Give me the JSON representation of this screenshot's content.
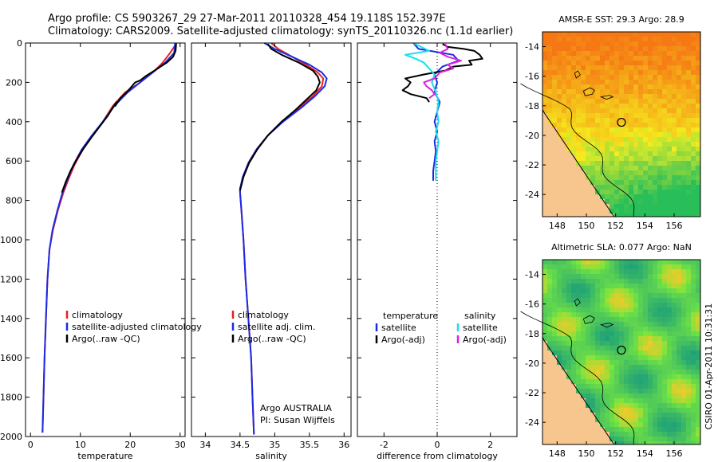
{
  "header": {
    "line1": "Argo profile: CS 5903267_29 27-Mar-2011 20110328_454 19.118S 152.397E",
    "line2": "Climatology: CARS2009. Satellite-adjusted climatology: synTS_20110326.nc (1.1d earlier)"
  },
  "footer_stamp": "CSIRO 01-Apr-2011 10:31:31",
  "colors": {
    "climatology": "#e8201a",
    "satellite": "#1a2be8",
    "argo": "#000000",
    "sal_satellite": "#19e0e8",
    "sal_argo": "#e020e0",
    "land": "#f7c58e"
  },
  "chart_data": [
    {
      "type": "line",
      "id": "temperature",
      "xlabel": "temperature",
      "ylabel": "",
      "xlim": [
        -1,
        31
      ],
      "ylim": [
        2000,
        0
      ],
      "xticks": [
        0,
        10,
        20,
        30
      ],
      "yticks": [
        0,
        200,
        400,
        600,
        800,
        1000,
        1200,
        1400,
        1600,
        1800,
        2000
      ],
      "legend": {
        "placement": "lower-right",
        "entries": [
          "climatology",
          "satellite-adjusted climatology",
          "Argo(..raw -QC)"
        ]
      },
      "series": [
        {
          "name": "climatology",
          "color": "climatology",
          "points": [
            [
              29.3,
              0
            ],
            [
              28,
              50
            ],
            [
              26.5,
              100
            ],
            [
              24.5,
              150
            ],
            [
              22,
              200
            ],
            [
              19,
              250
            ],
            [
              16.5,
              320
            ],
            [
              14.5,
              400
            ],
            [
              12.5,
              470
            ],
            [
              10.5,
              540
            ],
            [
              8.8,
              620
            ],
            [
              7.5,
              700
            ],
            [
              6.6,
              760
            ],
            [
              5.5,
              850
            ],
            [
              4.5,
              950
            ],
            [
              3.8,
              1050
            ],
            [
              3.4,
              1200
            ],
            [
              3.1,
              1400
            ],
            [
              2.8,
              1600
            ],
            [
              2.6,
              1800
            ],
            [
              2.4,
              1980
            ]
          ]
        },
        {
          "name": "satellite-adjusted climatology",
          "color": "satellite",
          "points": [
            [
              29.0,
              0
            ],
            [
              28.8,
              50
            ],
            [
              27,
              100
            ],
            [
              24.5,
              150
            ],
            [
              22,
              200
            ],
            [
              19.5,
              250
            ],
            [
              16.8,
              320
            ],
            [
              14.5,
              400
            ],
            [
              12.3,
              470
            ],
            [
              10.3,
              540
            ],
            [
              8.6,
              620
            ],
            [
              7.3,
              700
            ],
            [
              6.4,
              760
            ],
            [
              5.4,
              850
            ],
            [
              4.4,
              950
            ],
            [
              3.8,
              1050
            ],
            [
              3.4,
              1200
            ],
            [
              3.1,
              1400
            ],
            [
              2.8,
              1600
            ],
            [
              2.6,
              1800
            ],
            [
              2.4,
              1980
            ]
          ]
        },
        {
          "name": "Argo(..raw -QC)",
          "color": "argo",
          "points": [
            [
              29.2,
              5
            ],
            [
              29.1,
              40
            ],
            [
              28.6,
              70
            ],
            [
              27.3,
              100
            ],
            [
              25.5,
              130
            ],
            [
              23,
              170
            ],
            [
              22,
              190
            ],
            [
              21,
              200
            ],
            [
              19.3,
              250
            ],
            [
              18,
              280
            ],
            [
              17,
              320
            ],
            [
              17.2,
              300
            ],
            [
              15.5,
              370
            ],
            [
              14,
              420
            ],
            [
              12.5,
              470
            ],
            [
              10.8,
              530
            ],
            [
              9.3,
              590
            ],
            [
              8,
              650
            ],
            [
              7,
              710
            ],
            [
              6.3,
              760
            ]
          ]
        }
      ]
    },
    {
      "type": "line",
      "id": "salinity",
      "xlabel": "salinity",
      "ylabel": "",
      "xlim": [
        33.8,
        36.1
      ],
      "ylim": [
        2000,
        0
      ],
      "xticks": [
        34,
        34.5,
        35,
        35.5,
        36
      ],
      "yticks": [
        0,
        200,
        400,
        600,
        800,
        1000,
        1200,
        1400,
        1600,
        1800,
        2000
      ],
      "legend": {
        "placement": "lower-right",
        "entries": [
          "climatology",
          "satellite adj. clim.",
          "Argo(..raw -QC)"
        ]
      },
      "annotation": [
        "Argo AUSTRALIA",
        "PI: Susan Wijffels"
      ],
      "series": [
        {
          "name": "climatology",
          "color": "climatology",
          "points": [
            [
              34.95,
              0
            ],
            [
              35.05,
              30
            ],
            [
              35.25,
              70
            ],
            [
              35.45,
              110
            ],
            [
              35.62,
              150
            ],
            [
              35.7,
              180
            ],
            [
              35.68,
              220
            ],
            [
              35.55,
              270
            ],
            [
              35.35,
              330
            ],
            [
              35.1,
              400
            ],
            [
              34.9,
              470
            ],
            [
              34.74,
              540
            ],
            [
              34.62,
              610
            ],
            [
              34.55,
              680
            ],
            [
              34.5,
              740
            ],
            [
              34.5,
              760
            ],
            [
              34.52,
              850
            ],
            [
              34.55,
              1000
            ],
            [
              34.58,
              1200
            ],
            [
              34.62,
              1400
            ],
            [
              34.66,
              1600
            ],
            [
              34.68,
              1800
            ],
            [
              34.7,
              1990
            ]
          ]
        },
        {
          "name": "satellite adj. clim.",
          "color": "satellite",
          "points": [
            [
              34.85,
              0
            ],
            [
              35.0,
              30
            ],
            [
              35.25,
              70
            ],
            [
              35.5,
              110
            ],
            [
              35.68,
              150
            ],
            [
              35.75,
              180
            ],
            [
              35.72,
              220
            ],
            [
              35.58,
              270
            ],
            [
              35.38,
              330
            ],
            [
              35.12,
              400
            ],
            [
              34.9,
              470
            ],
            [
              34.74,
              540
            ],
            [
              34.62,
              610
            ],
            [
              34.54,
              680
            ],
            [
              34.5,
              740
            ],
            [
              34.5,
              760
            ],
            [
              34.52,
              850
            ],
            [
              34.55,
              1000
            ],
            [
              34.58,
              1200
            ],
            [
              34.62,
              1400
            ],
            [
              34.66,
              1600
            ],
            [
              34.68,
              1800
            ],
            [
              34.7,
              1990
            ]
          ]
        },
        {
          "name": "Argo(..raw -QC)",
          "color": "argo",
          "points": [
            [
              34.9,
              5
            ],
            [
              34.95,
              30
            ],
            [
              35.1,
              60
            ],
            [
              35.35,
              100
            ],
            [
              35.55,
              140
            ],
            [
              35.62,
              170
            ],
            [
              35.65,
              200
            ],
            [
              35.6,
              240
            ],
            [
              35.45,
              290
            ],
            [
              35.3,
              340
            ],
            [
              35.1,
              400
            ],
            [
              34.9,
              470
            ],
            [
              34.75,
              540
            ],
            [
              34.63,
              610
            ],
            [
              34.55,
              680
            ],
            [
              34.5,
              750
            ]
          ]
        }
      ]
    },
    {
      "type": "line",
      "id": "difference",
      "xlabel": "difference from climatology",
      "ylabel": "",
      "xlim": [
        -3,
        3
      ],
      "ylim": [
        2000,
        0
      ],
      "xticks": [
        -2,
        0,
        2
      ],
      "yticks": [
        0,
        200,
        400,
        600,
        800,
        1000,
        1200,
        1400,
        1600,
        1800,
        2000
      ],
      "zero_line": 0,
      "legend": {
        "placement": "lower-center",
        "temperature_title": "temperature",
        "salinity_title": "salinity",
        "temperature_entries": [
          "satellite",
          "Argo(-adj)"
        ],
        "salinity_entries": [
          "satellite",
          "Argo(-adj)"
        ]
      },
      "series": [
        {
          "name": "temperature satellite",
          "color": "satellite",
          "points": [
            [
              -0.9,
              0
            ],
            [
              -0.7,
              30
            ],
            [
              0.6,
              60
            ],
            [
              0.8,
              90
            ],
            [
              0.2,
              120
            ],
            [
              -0.1,
              160
            ],
            [
              0,
              200
            ],
            [
              -0.1,
              250
            ],
            [
              0.1,
              300
            ],
            [
              0,
              350
            ],
            [
              -0.1,
              400
            ],
            [
              0,
              450
            ],
            [
              -0.1,
              500
            ],
            [
              -0.05,
              550
            ],
            [
              -0.1,
              600
            ],
            [
              -0.15,
              650
            ],
            [
              -0.15,
              700
            ]
          ]
        },
        {
          "name": "temperature Argo(-adj)",
          "color": "argo",
          "points": [
            [
              0.2,
              5
            ],
            [
              0.4,
              20
            ],
            [
              1.0,
              30
            ],
            [
              1.4,
              40
            ],
            [
              1.6,
              60
            ],
            [
              1.7,
              80
            ],
            [
              1.2,
              90
            ],
            [
              1.3,
              110
            ],
            [
              0.6,
              120
            ],
            [
              0.3,
              140
            ],
            [
              -0.5,
              160
            ],
            [
              -1.2,
              180
            ],
            [
              -1.0,
              200
            ],
            [
              -1.1,
              220
            ],
            [
              -1.3,
              240
            ],
            [
              -1.0,
              260
            ],
            [
              -0.4,
              280
            ],
            [
              -0.3,
              300
            ]
          ]
        },
        {
          "name": "salinity satellite",
          "color": "sal_satellite",
          "points": [
            [
              -0.9,
              0
            ],
            [
              -0.6,
              20
            ],
            [
              -0.3,
              40
            ],
            [
              -1.2,
              60
            ],
            [
              -0.8,
              80
            ],
            [
              -0.5,
              100
            ],
            [
              -0.3,
              130
            ],
            [
              -0.1,
              160
            ],
            [
              -0.2,
              200
            ],
            [
              -0.05,
              250
            ],
            [
              0.05,
              300
            ],
            [
              0,
              350
            ],
            [
              0.05,
              400
            ],
            [
              -0.05,
              450
            ],
            [
              0.05,
              500
            ],
            [
              0,
              550
            ],
            [
              -0.05,
              600
            ],
            [
              -0.05,
              650
            ],
            [
              -0.05,
              700
            ]
          ]
        },
        {
          "name": "salinity Argo(-adj)",
          "color": "sal_argo",
          "points": [
            [
              0.3,
              5
            ],
            [
              0.4,
              30
            ],
            [
              0.1,
              50
            ],
            [
              0.4,
              70
            ],
            [
              0.9,
              90
            ],
            [
              0.4,
              110
            ],
            [
              0.6,
              130
            ],
            [
              0.1,
              150
            ],
            [
              -0.1,
              180
            ],
            [
              -0.5,
              200
            ],
            [
              -0.4,
              220
            ],
            [
              -0.2,
              240
            ],
            [
              -0.1,
              260
            ],
            [
              -0.3,
              280
            ]
          ]
        }
      ]
    },
    {
      "type": "heatmap",
      "id": "sst-map",
      "title": "AMSR-E SST: 29.3 Argo: 28.9",
      "xlim": [
        147,
        157.8
      ],
      "ylim": [
        -25.5,
        -13
      ],
      "xticks": [
        148,
        150,
        152,
        154,
        156
      ],
      "yticks": [
        -14,
        -16,
        -18,
        -20,
        -22,
        -24
      ],
      "marker": {
        "lon": 152.397,
        "lat": -19.118
      }
    },
    {
      "type": "heatmap",
      "id": "sla-map",
      "title": "Altimetric SLA: 0.077 Argo: NaN",
      "xlim": [
        147,
        157.8
      ],
      "ylim": [
        -25.5,
        -13
      ],
      "xticks": [
        148,
        150,
        152,
        154,
        156
      ],
      "yticks": [
        -14,
        -16,
        -18,
        -20,
        -22,
        -24
      ],
      "marker": {
        "lon": 152.397,
        "lat": -19.118
      }
    }
  ]
}
